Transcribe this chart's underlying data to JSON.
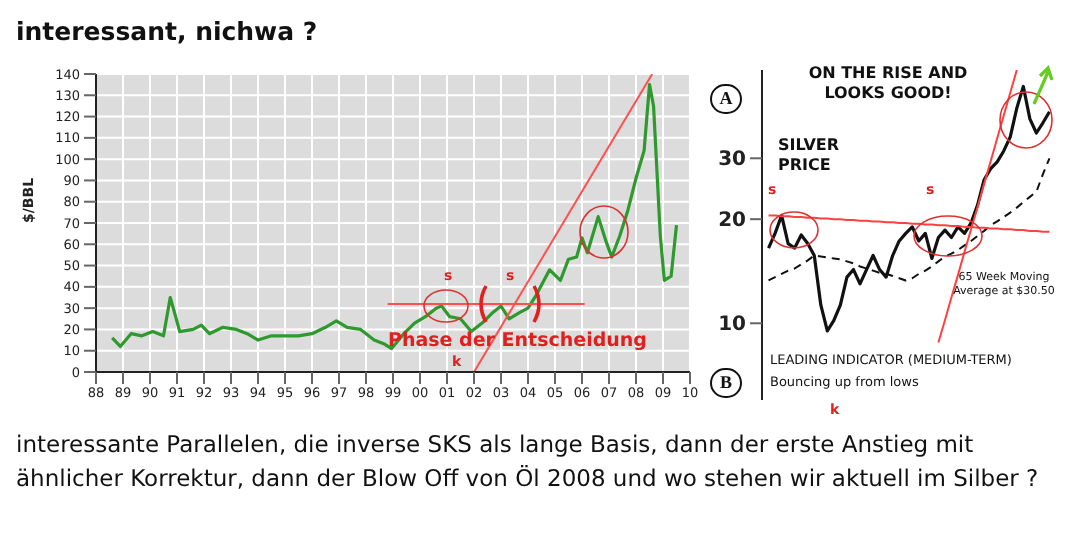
{
  "chart_data": [
    {
      "type": "line",
      "title": "interessant, nichwa ?",
      "ylabel": "$/BBL",
      "xlim": [
        1988,
        2010
      ],
      "xticks": [
        {
          "value": 1988,
          "label": "88"
        },
        {
          "value": 1989,
          "label": "89"
        },
        {
          "value": 1990,
          "label": "90"
        },
        {
          "value": 1991,
          "label": "91"
        },
        {
          "value": 1992,
          "label": "92"
        },
        {
          "value": 1993,
          "label": "93"
        },
        {
          "value": 1994,
          "label": "94"
        },
        {
          "value": 1995,
          "label": "95"
        },
        {
          "value": 1996,
          "label": "96"
        },
        {
          "value": 1997,
          "label": "97"
        },
        {
          "value": 1998,
          "label": "98"
        },
        {
          "value": 1999,
          "label": "99"
        },
        {
          "value": 2000,
          "label": "00"
        },
        {
          "value": 2001,
          "label": "01"
        },
        {
          "value": 2002,
          "label": "02"
        },
        {
          "value": 2003,
          "label": "03"
        },
        {
          "value": 2004,
          "label": "04"
        },
        {
          "value": 2005,
          "label": "05"
        },
        {
          "value": 2006,
          "label": "06"
        },
        {
          "value": 2007,
          "label": "07"
        },
        {
          "value": 2008,
          "label": "08"
        },
        {
          "value": 2009,
          "label": "09"
        },
        {
          "value": 2010,
          "label": "10"
        }
      ],
      "ylim": [
        0,
        140
      ],
      "yticks": [
        0,
        10,
        20,
        30,
        40,
        50,
        60,
        70,
        80,
        90,
        100,
        110,
        120,
        130,
        140
      ],
      "grid": true,
      "series": [
        {
          "color": "#2e9a2e",
          "x": [
            1988.6,
            1988.9,
            1989.3,
            1989.7,
            1990.1,
            1990.5,
            1990.75,
            1990.95,
            1991.1,
            1991.6,
            1991.9,
            1992.2,
            1992.7,
            1993.2,
            1993.6,
            1994,
            1994.5,
            1995,
            1995.5,
            1996,
            1996.5,
            1996.9,
            1997.3,
            1997.8,
            1998.3,
            1998.7,
            1998.95,
            1999.4,
            1999.8,
            2000.2,
            2000.6,
            2000.8,
            2001.1,
            2001.5,
            2001.9,
            2002.3,
            2002.7,
            2003,
            2003.3,
            2003.7,
            2004,
            2004.3,
            2004.8,
            2005.2,
            2005.5,
            2005.8,
            2006,
            2006.2,
            2006.6,
            2006.9,
            2007.1,
            2007.4,
            2007.7,
            2008,
            2008.3,
            2008.5,
            2008.65,
            2008.9,
            2009.05,
            2009.3,
            2009.5
          ],
          "values": [
            16,
            12,
            18,
            17,
            19,
            17,
            35,
            26,
            19,
            20,
            22,
            18,
            21,
            20,
            18,
            15,
            17,
            17,
            17,
            18,
            21,
            24,
            21,
            20,
            15,
            13,
            11,
            18,
            23,
            26,
            30,
            31,
            26,
            25,
            19,
            23,
            28,
            31,
            25,
            28,
            30,
            36,
            48,
            43,
            53,
            54,
            63,
            56,
            73,
            61,
            54,
            64,
            76,
            91,
            104,
            135,
            125,
            64,
            43,
            45,
            69
          ]
        },
        {
          "type": "line",
          "color": "#ff5050",
          "x": [
            2002,
            2008.6
          ],
          "values": [
            0,
            140
          ]
        },
        {
          "type": "line",
          "color": "#ff5050",
          "x": [
            1998.8,
            2006.1
          ],
          "values": [
            32,
            32
          ]
        }
      ],
      "annotations": [
        "Phase der Entscheidung",
        "s",
        "s",
        "k",
        "interessante Parallelen, die inverse SKS als lange Basis, dann der erste Anstieg mit ähnlicher Korrektur, dann der Blow Off von Öl 2008 und wo stehen wir aktuell im Silber ?"
      ]
    },
    {
      "type": "line",
      "title": "ON THE RISE AND LOOKS GOOD!",
      "log": "y",
      "categories": [
        null,
        null,
        null,
        null,
        null,
        null,
        null,
        null,
        null,
        null,
        null,
        null,
        null,
        null,
        null,
        null,
        null,
        null,
        null,
        null,
        null,
        null,
        null,
        null,
        null,
        null,
        null,
        null,
        null,
        null,
        null,
        null,
        null,
        null,
        null,
        null,
        null,
        null,
        null,
        null,
        null,
        null,
        null,
        null
      ],
      "ylim": [
        6,
        54
      ],
      "yticks": [
        10,
        20,
        30
      ],
      "tick_labels": "y",
      "series": [
        {
          "name": "SILVER PRICE",
          "color": "#111111",
          "values": [
            16.5,
            18.2,
            20.5,
            17,
            16.5,
            18,
            17,
            15.7,
            11.3,
            9.5,
            10.2,
            11.3,
            13.6,
            14.3,
            13,
            14.3,
            15.7,
            14.3,
            13.6,
            15.7,
            17.3,
            18.2,
            19,
            17.3,
            18.2,
            15.4,
            17.7,
            18.6,
            17.7,
            19,
            18.2,
            19.5,
            22,
            26,
            28,
            29.3,
            31.5,
            34.6,
            41.9,
            48.4,
            39,
            35.5,
            38,
            40.9
          ]
        },
        {
          "name": "65 Week Moving Average at $30.50",
          "color": "#111111",
          "line_style": "dashed",
          "values": [
            13.3,
            13.6,
            13.9,
            14.2,
            14.4,
            14.8,
            15.2,
            15.7,
            15.6,
            15.5,
            15.4,
            15.3,
            15.1,
            14.9,
            14.6,
            14.4,
            14.2,
            14,
            13.9,
            13.7,
            13.5,
            13.3,
            13.5,
            13.9,
            14.2,
            14.6,
            15.1,
            15.6,
            15.9,
            16.3,
            16.8,
            17.3,
            17.9,
            18.5,
            19.2,
            19.7,
            20.3,
            20.9,
            21.6,
            22.4,
            23.2,
            24,
            27,
            30
          ]
        },
        {
          "type": "line",
          "color": "#ff4040",
          "values": [
            20.5,
            20.5,
            20.4,
            20.4,
            20.3,
            20.3,
            20.2,
            20.2,
            20.1,
            20.1,
            20.0,
            20.0,
            19.9,
            19.9,
            19.8,
            19.8,
            19.7,
            19.7,
            19.6,
            19.6,
            19.5,
            19.5,
            19.4,
            19.4,
            19.3,
            19.3,
            19.2,
            19.2,
            19.1,
            19.1,
            19.0,
            19.0,
            18.9,
            18.9,
            18.8,
            18.8,
            18.7,
            18.7,
            18.6,
            18.6,
            18.5,
            18.5,
            18.4,
            18.4
          ]
        },
        {
          "type": "line",
          "color": "#ff4040",
          "values": [
            null,
            null,
            null,
            null,
            null,
            null,
            null,
            null,
            null,
            null,
            null,
            null,
            null,
            null,
            null,
            null,
            null,
            null,
            null,
            null,
            null,
            null,
            null,
            null,
            null,
            null,
            8.8,
            10.2,
            11.9,
            13.8,
            16.1,
            18.7,
            21.7,
            25.3,
            29.4,
            34.3,
            39.9,
            46.4,
            54,
            null,
            null,
            null,
            null,
            null
          ]
        }
      ],
      "annotations": [
        "A",
        "B",
        "LEADING INDICATOR (MEDIUM-TERM)",
        "Bouncing up from lows",
        "s",
        "s",
        "k"
      ]
    }
  ]
}
